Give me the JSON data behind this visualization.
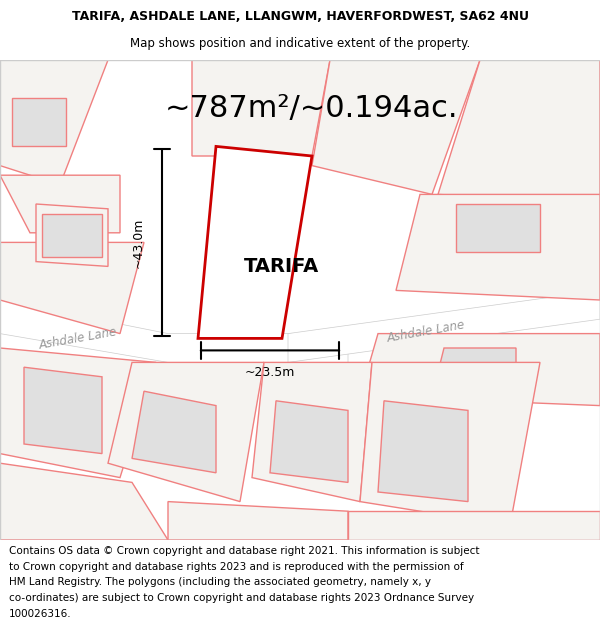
{
  "title_line1": "TARIFA, ASHDALE LANE, LLANGWM, HAVERFORDWEST, SA62 4NU",
  "title_line2": "Map shows position and indicative extent of the property.",
  "area_text": "~787m²/~0.194ac.",
  "property_label": "TARIFA",
  "dim_height": "~43.0m",
  "dim_width": "~23.5m",
  "road_label_left": "Ashdale Lane",
  "road_label_right": "Ashdale Lane",
  "footer_lines": [
    "Contains OS data © Crown copyright and database right 2021. This information is subject",
    "to Crown copyright and database rights 2023 and is reproduced with the permission of",
    "HM Land Registry. The polygons (including the associated geometry, namely x, y",
    "co-ordinates) are subject to Crown copyright and database rights 2023 Ordnance Survey",
    "100026316."
  ],
  "bg_color": "#ffffff",
  "map_bg": "#f0eeec",
  "property_fill": "#ffffff",
  "property_edge": "#cc0000",
  "other_poly_edge": "#f08080",
  "other_poly_fill": "#f5f3f0",
  "building_fill": "#e0e0e0",
  "road_fill": "#ffffff",
  "dim_color": "#000000",
  "title_fontsize": 9,
  "area_fontsize": 22,
  "label_fontsize": 14,
  "footer_fontsize": 7.5
}
